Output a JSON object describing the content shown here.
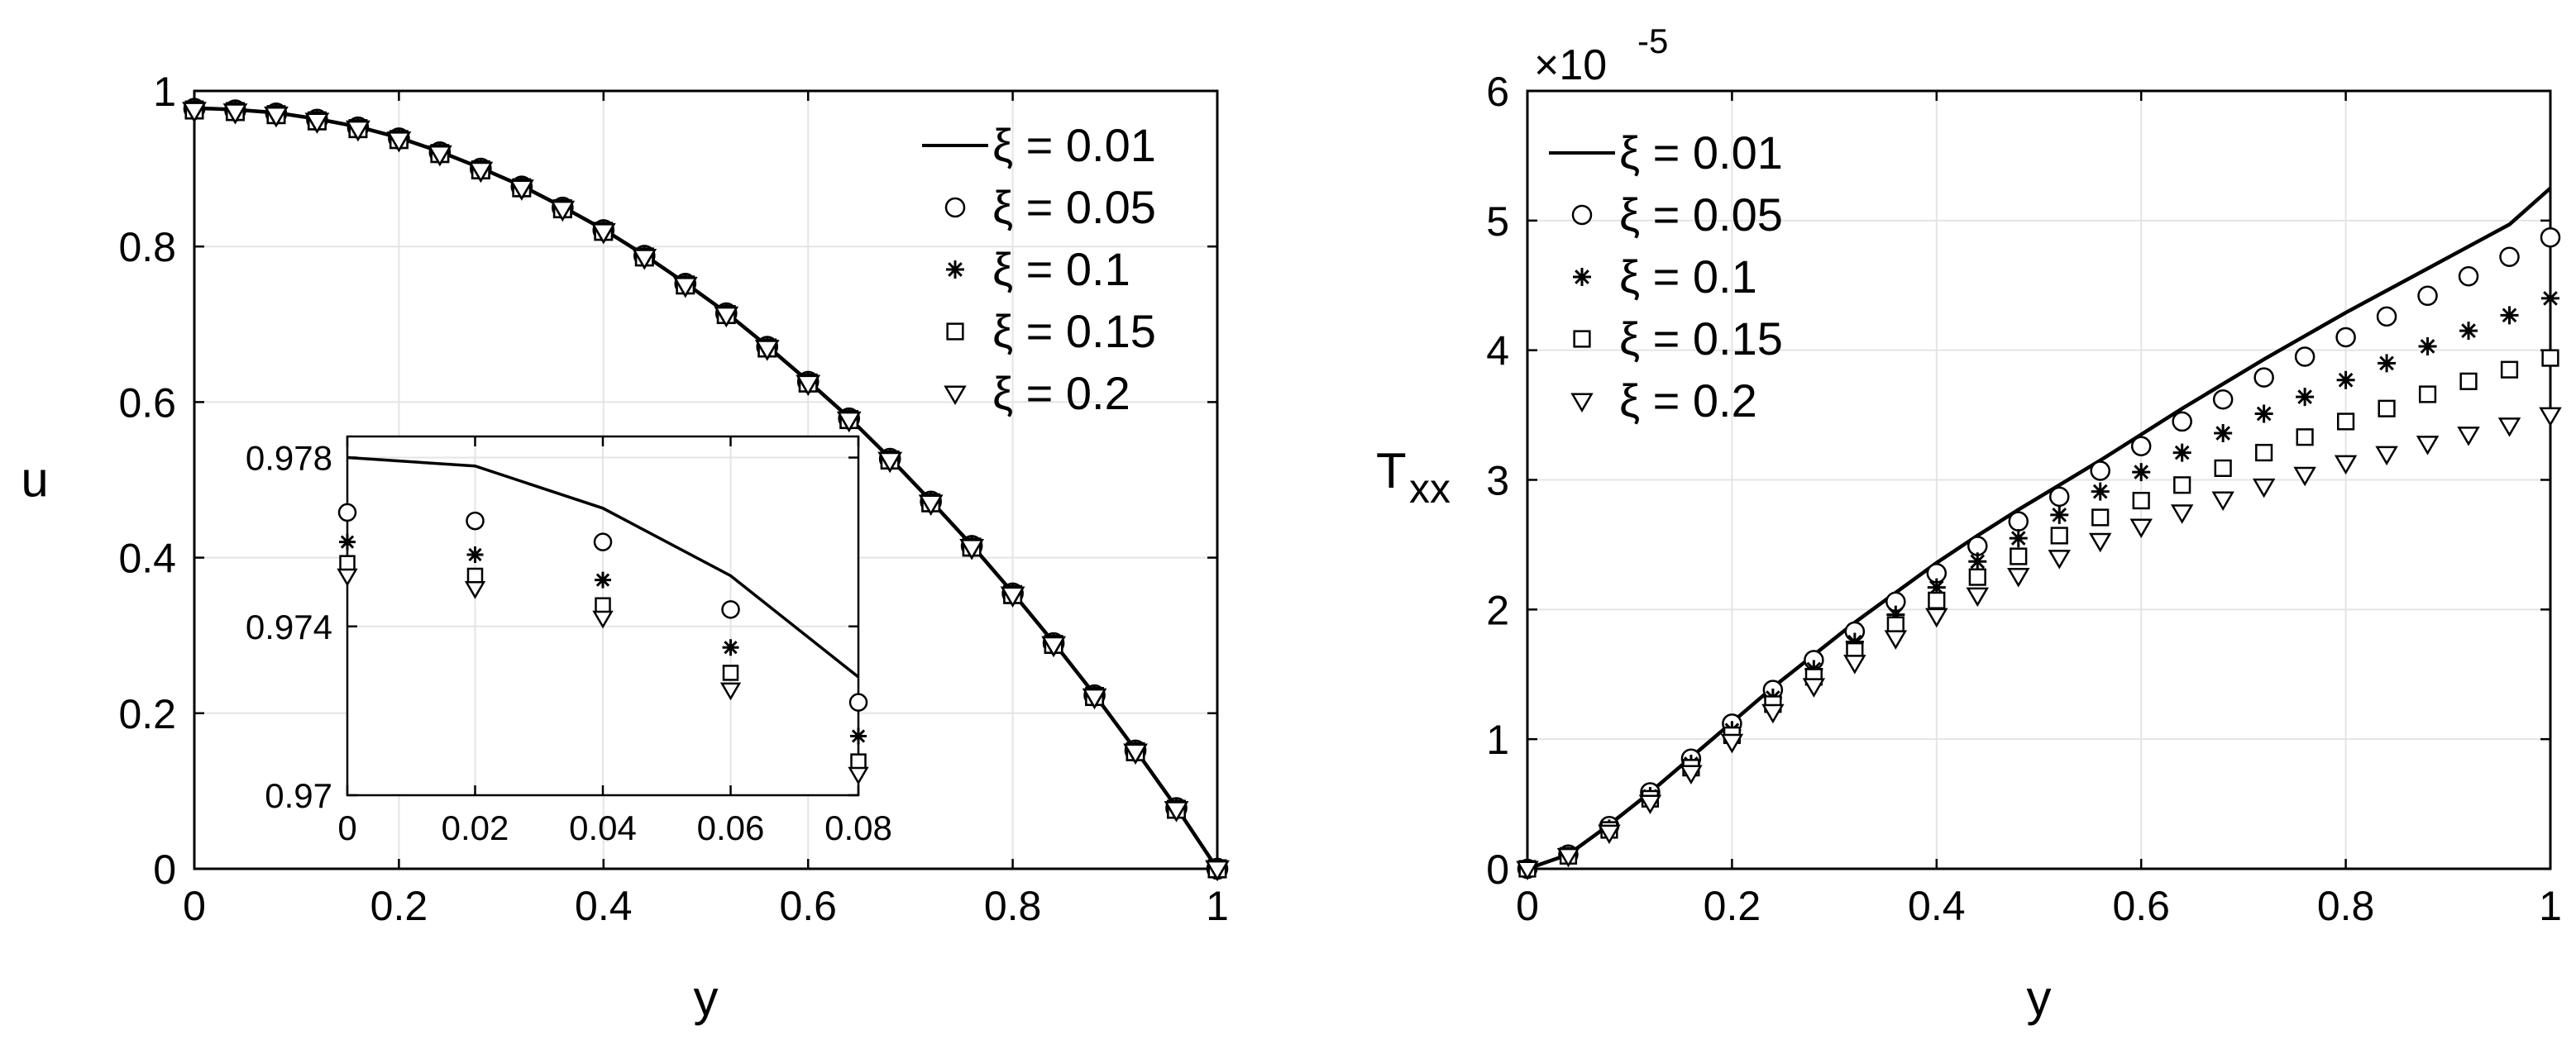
{
  "chart_data": [
    {
      "type": "line",
      "xlabel": "y",
      "ylabel": "u",
      "xlim": [
        0,
        1
      ],
      "ylim": [
        0,
        1
      ],
      "xticks": [
        "0",
        "0.2",
        "0.4",
        "0.6",
        "0.8",
        "1"
      ],
      "yticks": [
        "0",
        "0.2",
        "0.4",
        "0.6",
        "0.8",
        "1"
      ],
      "grid": true,
      "legend_position": "top-right",
      "series": [
        {
          "name": "ξ = 0.01",
          "style": "solid-line",
          "x": [
            0,
            0.04,
            0.08,
            0.12,
            0.16,
            0.2,
            0.24,
            0.28,
            0.32,
            0.36,
            0.4,
            0.44,
            0.48,
            0.52,
            0.56,
            0.6,
            0.64,
            0.68,
            0.72,
            0.76,
            0.8,
            0.84,
            0.88,
            0.92,
            0.96,
            1
          ],
          "y": [
            0.978,
            0.976,
            0.972,
            0.964,
            0.954,
            0.94,
            0.922,
            0.901,
            0.878,
            0.851,
            0.822,
            0.789,
            0.753,
            0.715,
            0.672,
            0.627,
            0.58,
            0.528,
            0.473,
            0.416,
            0.355,
            0.291,
            0.224,
            0.153,
            0.079,
            0.0
          ]
        },
        {
          "name": "ξ = 0.05",
          "style": "circle-markers",
          "x": [
            0,
            0.04,
            0.08,
            0.12,
            0.16,
            0.2,
            0.24,
            0.28,
            0.32,
            0.36,
            0.4,
            0.44,
            0.48,
            0.52,
            0.56,
            0.6,
            0.64,
            0.68,
            0.72,
            0.76,
            0.8,
            0.84,
            0.88,
            0.92,
            0.96,
            1
          ],
          "y": [
            0.977,
            0.975,
            0.971,
            0.963,
            0.953,
            0.939,
            0.921,
            0.9,
            0.877,
            0.85,
            0.821,
            0.788,
            0.752,
            0.714,
            0.671,
            0.626,
            0.579,
            0.527,
            0.472,
            0.415,
            0.354,
            0.29,
            0.223,
            0.152,
            0.078,
            0.0
          ]
        },
        {
          "name": "ξ = 0.1",
          "style": "asterisk-markers",
          "x": [
            0,
            0.04,
            0.08,
            0.12,
            0.16,
            0.2,
            0.24,
            0.28,
            0.32,
            0.36,
            0.4,
            0.44,
            0.48,
            0.52,
            0.56,
            0.6,
            0.64,
            0.68,
            0.72,
            0.76,
            0.8,
            0.84,
            0.88,
            0.92,
            0.96,
            1
          ],
          "y": [
            0.976,
            0.974,
            0.97,
            0.962,
            0.952,
            0.938,
            0.92,
            0.899,
            0.876,
            0.849,
            0.82,
            0.787,
            0.751,
            0.713,
            0.67,
            0.625,
            0.578,
            0.526,
            0.471,
            0.414,
            0.353,
            0.289,
            0.222,
            0.151,
            0.077,
            0.0
          ]
        },
        {
          "name": "ξ = 0.15",
          "style": "square-markers",
          "x": [
            0,
            0.04,
            0.08,
            0.12,
            0.16,
            0.2,
            0.24,
            0.28,
            0.32,
            0.36,
            0.4,
            0.44,
            0.48,
            0.52,
            0.56,
            0.6,
            0.64,
            0.68,
            0.72,
            0.76,
            0.8,
            0.84,
            0.88,
            0.92,
            0.96,
            1
          ],
          "y": [
            0.9755,
            0.9735,
            0.9695,
            0.9615,
            0.9515,
            0.9375,
            0.9195,
            0.8985,
            0.8755,
            0.8485,
            0.8195,
            0.7865,
            0.7505,
            0.7125,
            0.6695,
            0.6245,
            0.5775,
            0.5255,
            0.4705,
            0.4135,
            0.3525,
            0.2885,
            0.2215,
            0.1505,
            0.0765,
            0.0
          ]
        },
        {
          "name": "ξ = 0.2",
          "style": "down-triangle-markers",
          "x": [
            0,
            0.04,
            0.08,
            0.12,
            0.16,
            0.2,
            0.24,
            0.28,
            0.32,
            0.36,
            0.4,
            0.44,
            0.48,
            0.52,
            0.56,
            0.6,
            0.64,
            0.68,
            0.72,
            0.76,
            0.8,
            0.84,
            0.88,
            0.92,
            0.96,
            1
          ],
          "y": [
            0.975,
            0.973,
            0.969,
            0.961,
            0.951,
            0.937,
            0.919,
            0.898,
            0.875,
            0.848,
            0.819,
            0.786,
            0.75,
            0.712,
            0.669,
            0.624,
            0.577,
            0.525,
            0.47,
            0.413,
            0.352,
            0.288,
            0.221,
            0.15,
            0.076,
            0.0
          ]
        }
      ],
      "inset": {
        "xlim": [
          0,
          0.08
        ],
        "ylim": [
          0.97,
          0.9785
        ],
        "xticks": [
          "0",
          "0.02",
          "0.04",
          "0.06",
          "0.08"
        ],
        "yticks": [
          "0.97",
          "0.974",
          "0.978"
        ],
        "grid": true,
        "series": [
          {
            "name": "ξ = 0.01",
            "style": "solid-line",
            "x": [
              0,
              0.02,
              0.04,
              0.06,
              0.08
            ],
            "y": [
              0.978,
              0.9778,
              0.9768,
              0.9752,
              0.9728
            ]
          },
          {
            "name": "ξ = 0.05",
            "style": "circle-markers",
            "x": [
              0,
              0.02,
              0.04,
              0.06,
              0.08
            ],
            "y": [
              0.9767,
              0.9765,
              0.976,
              0.9744,
              0.9722
            ]
          },
          {
            "name": "ξ = 0.1",
            "style": "asterisk-markers",
            "x": [
              0,
              0.02,
              0.04,
              0.06,
              0.08
            ],
            "y": [
              0.976,
              0.9757,
              0.9751,
              0.9735,
              0.9714
            ]
          },
          {
            "name": "ξ = 0.15",
            "style": "square-markers",
            "x": [
              0,
              0.02,
              0.04,
              0.06,
              0.08
            ],
            "y": [
              0.9755,
              0.9752,
              0.9745,
              0.9729,
              0.9708
            ]
          },
          {
            "name": "ξ = 0.2",
            "style": "down-triangle-markers",
            "x": [
              0,
              0.02,
              0.04,
              0.06,
              0.08
            ],
            "y": [
              0.9752,
              0.9749,
              0.9742,
              0.9725,
              0.9705
            ]
          }
        ]
      }
    },
    {
      "type": "line",
      "xlabel": "y",
      "ylabel": "T",
      "ylabel_subscript": "xx",
      "y_exponent": "×10",
      "y_exponent_power": "-5",
      "xlim": [
        0,
        1
      ],
      "ylim": [
        0,
        6
      ],
      "xticks": [
        "0",
        "0.2",
        "0.4",
        "0.6",
        "0.8",
        "1"
      ],
      "yticks": [
        "0",
        "1",
        "2",
        "3",
        "4",
        "5",
        "6"
      ],
      "grid": true,
      "legend_position": "top-left",
      "series": [
        {
          "name": "ξ = 0.01",
          "style": "solid-line",
          "x": [
            0,
            0.04,
            0.08,
            0.12,
            0.16,
            0.2,
            0.24,
            0.28,
            0.32,
            0.36,
            0.4,
            0.44,
            0.48,
            0.52,
            0.56,
            0.6,
            0.64,
            0.68,
            0.72,
            0.76,
            0.8,
            0.84,
            0.88,
            0.92,
            0.96,
            1
          ],
          "y": [
            0,
            0.11,
            0.34,
            0.59,
            0.86,
            1.13,
            1.4,
            1.65,
            1.9,
            2.13,
            2.36,
            2.57,
            2.77,
            2.96,
            3.15,
            3.35,
            3.55,
            3.74,
            3.93,
            4.11,
            4.29,
            4.46,
            4.63,
            4.8,
            4.97,
            5.25
          ]
        },
        {
          "name": "ξ = 0.05",
          "style": "circle-markers",
          "x": [
            0,
            0.04,
            0.08,
            0.12,
            0.16,
            0.2,
            0.24,
            0.28,
            0.32,
            0.36,
            0.4,
            0.44,
            0.48,
            0.52,
            0.56,
            0.6,
            0.64,
            0.68,
            0.72,
            0.76,
            0.8,
            0.84,
            0.88,
            0.92,
            0.96,
            1
          ],
          "y": [
            0,
            0.11,
            0.33,
            0.59,
            0.85,
            1.12,
            1.38,
            1.61,
            1.83,
            2.06,
            2.28,
            2.49,
            2.68,
            2.87,
            3.07,
            3.26,
            3.45,
            3.62,
            3.79,
            3.95,
            4.1,
            4.26,
            4.42,
            4.57,
            4.72,
            4.87
          ]
        },
        {
          "name": "ξ = 0.1",
          "style": "asterisk-markers",
          "x": [
            0,
            0.04,
            0.08,
            0.12,
            0.16,
            0.2,
            0.24,
            0.28,
            0.32,
            0.36,
            0.4,
            0.44,
            0.48,
            0.52,
            0.56,
            0.6,
            0.64,
            0.68,
            0.72,
            0.76,
            0.8,
            0.84,
            0.88,
            0.92,
            0.96,
            1
          ],
          "y": [
            0,
            0.1,
            0.31,
            0.56,
            0.81,
            1.07,
            1.32,
            1.54,
            1.75,
            1.96,
            2.17,
            2.37,
            2.55,
            2.73,
            2.91,
            3.06,
            3.21,
            3.36,
            3.51,
            3.64,
            3.77,
            3.9,
            4.03,
            4.15,
            4.27,
            4.4
          ]
        },
        {
          "name": "ξ = 0.15",
          "style": "square-markers",
          "x": [
            0,
            0.04,
            0.08,
            0.12,
            0.16,
            0.2,
            0.24,
            0.28,
            0.32,
            0.36,
            0.4,
            0.44,
            0.48,
            0.52,
            0.56,
            0.6,
            0.64,
            0.68,
            0.72,
            0.76,
            0.8,
            0.84,
            0.88,
            0.92,
            0.96,
            1
          ],
          "y": [
            0,
            0.1,
            0.3,
            0.54,
            0.78,
            1.03,
            1.27,
            1.48,
            1.68,
            1.88,
            2.07,
            2.25,
            2.41,
            2.57,
            2.71,
            2.84,
            2.96,
            3.09,
            3.21,
            3.33,
            3.45,
            3.55,
            3.66,
            3.76,
            3.85,
            3.94
          ]
        },
        {
          "name": "ξ = 0.2",
          "style": "down-triangle-markers",
          "x": [
            0,
            0.04,
            0.08,
            0.12,
            0.16,
            0.2,
            0.24,
            0.28,
            0.32,
            0.36,
            0.4,
            0.44,
            0.48,
            0.52,
            0.56,
            0.6,
            0.64,
            0.68,
            0.72,
            0.76,
            0.8,
            0.84,
            0.88,
            0.92,
            0.96,
            1
          ],
          "y": [
            0,
            0.1,
            0.28,
            0.51,
            0.74,
            0.98,
            1.21,
            1.41,
            1.59,
            1.78,
            1.95,
            2.11,
            2.26,
            2.4,
            2.53,
            2.64,
            2.75,
            2.85,
            2.95,
            3.04,
            3.13,
            3.2,
            3.28,
            3.35,
            3.42,
            3.5
          ]
        }
      ]
    }
  ]
}
